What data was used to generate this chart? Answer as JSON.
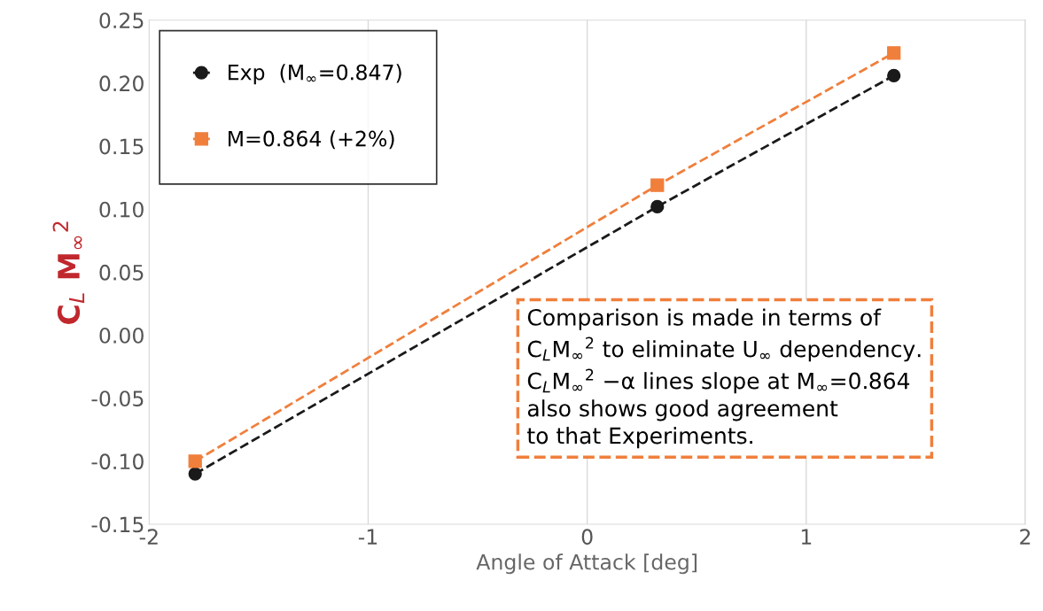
{
  "chart_data": {
    "type": "line",
    "xlabel": "Angle of Attack [deg]",
    "ylabel": "C$_{L}$ M$_{∞}$$^{2}$",
    "xlim": [
      -2,
      2
    ],
    "xticks": [
      -2,
      -1,
      0,
      1,
      2
    ],
    "ylim": [
      -0.15,
      0.25
    ],
    "yticks": [
      {
        "value": -0.15,
        "label": "-0.15"
      },
      {
        "value": -0.1,
        "label": "-0.10"
      },
      {
        "value": -0.05,
        "label": "-0.05"
      },
      {
        "value": 0,
        "label": "0.00"
      },
      {
        "value": 0.05,
        "label": "0.05"
      },
      {
        "value": 0.1,
        "label": "0.10"
      },
      {
        "value": 0.15,
        "label": "0.15"
      },
      {
        "value": 0.2,
        "label": "0.20"
      },
      {
        "value": 0.25,
        "label": "0.25"
      }
    ],
    "grid": "x",
    "legend": "top left",
    "line_style": "dashed",
    "series": [
      {
        "name": "Exp  (M$_{∞}$=0.847)",
        "color": "#1a1a1a",
        "marker": "circle",
        "x": [
          -1.79,
          0.32,
          1.4
        ],
        "values": [
          -0.11,
          0.102,
          0.206
        ]
      },
      {
        "name": "M=0.864 (+2%)",
        "color": "#f07f3c",
        "marker": "square",
        "x": [
          -1.79,
          0.32,
          1.4
        ],
        "values": [
          -0.1,
          0.119,
          0.224
        ]
      }
    ],
    "annotations": [
      "Comparison is made in terms of\nC$_{L}$M$_{∞}$$^{2}$ to eliminate U$_{∞}$ dependency.\nC$_{L}$M$_{∞}$$^{2}$ −α lines slope at M$_{∞}$=0.864\nalso shows good agreement\nto that Experiments."
    ]
  }
}
